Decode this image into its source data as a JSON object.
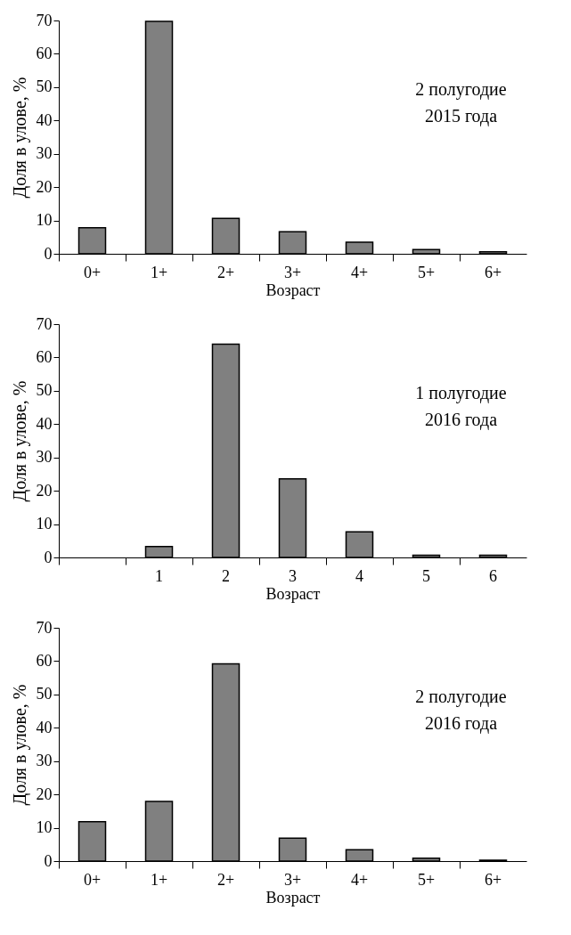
{
  "chart_data": [
    {
      "type": "bar",
      "categories": [
        "0+",
        "1+",
        "2+",
        "3+",
        "4+",
        "5+",
        "6+"
      ],
      "values": [
        7.8,
        69.7,
        10.6,
        6.6,
        3.5,
        1.3,
        0.6
      ],
      "color": "#808080",
      "xlabel": "Возраст",
      "ylabel": "Доля в улове, %",
      "ylim": [
        0,
        70
      ],
      "yticks": [
        0,
        10,
        20,
        30,
        40,
        50,
        60,
        70
      ],
      "grid": false,
      "annotations": [
        "2 полугодие\n2015 года"
      ]
    },
    {
      "type": "bar",
      "categories": [
        null,
        "1",
        "2",
        "3",
        "4",
        "5",
        "6"
      ],
      "values": [
        null,
        3.3,
        64,
        23.6,
        7.7,
        0.7,
        0.7
      ],
      "color": "#808080",
      "xlabel": "Возраст",
      "ylabel": "Доля в улове, %",
      "ylim": [
        0,
        70
      ],
      "yticks": [
        0,
        10,
        20,
        30,
        40,
        50,
        60,
        70
      ],
      "grid": false,
      "annotations": [
        "1 полугодие\n2016 года"
      ]
    },
    {
      "type": "bar",
      "categories": [
        "0+",
        "1+",
        "2+",
        "3+",
        "4+",
        "5+",
        "6+"
      ],
      "values": [
        11.8,
        17.9,
        59.2,
        6.9,
        3.4,
        0.9,
        0.3
      ],
      "color": "#808080",
      "xlabel": "Возраст",
      "ylabel": "Доля в улове, %",
      "ylim": [
        0,
        70
      ],
      "yticks": [
        0,
        10,
        20,
        30,
        40,
        50,
        60,
        70
      ],
      "grid": false,
      "annotations": [
        "2 полугодие\n2016 года"
      ]
    }
  ]
}
